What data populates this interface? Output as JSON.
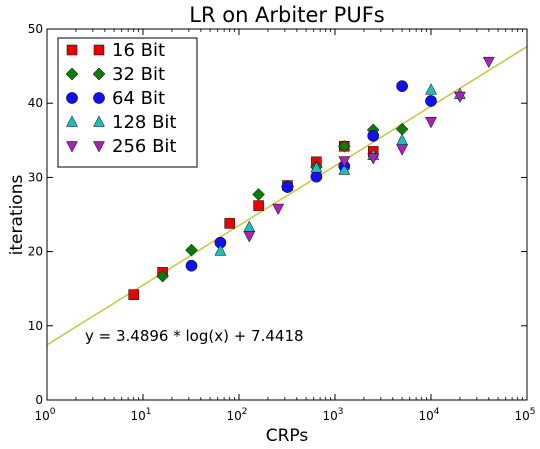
{
  "chart_data": {
    "type": "scatter",
    "title": "LR on Arbiter PUFs",
    "xlabel": "CRPs",
    "ylabel": "iterations",
    "xscale": "log",
    "xlim": [
      1,
      100000
    ],
    "ylim": [
      0,
      50
    ],
    "xticks": [
      {
        "value": 1,
        "base": "10",
        "exp": "0"
      },
      {
        "value": 10,
        "base": "10",
        "exp": "1"
      },
      {
        "value": 100,
        "base": "10",
        "exp": "2"
      },
      {
        "value": 1000,
        "base": "10",
        "exp": "3"
      },
      {
        "value": 10000,
        "base": "10",
        "exp": "4"
      },
      {
        "value": 100000,
        "base": "10",
        "exp": "5"
      }
    ],
    "yticks": [
      "0",
      "10",
      "20",
      "30",
      "40",
      "50"
    ],
    "grid": false,
    "legend_position": "top-left",
    "fit_line": {
      "label": "y = 3.4896 * log(x) + 7.4418",
      "slope": 3.4896,
      "intercept": 7.4418,
      "color": "#c8c84a"
    },
    "series": [
      {
        "name": "16 Bit",
        "marker": "square",
        "color": "#ee0000",
        "points": [
          [
            8,
            14.2
          ],
          [
            16,
            17.2
          ],
          [
            80,
            23.8
          ],
          [
            160,
            26.2
          ],
          [
            320,
            28.9
          ],
          [
            640,
            32.1
          ],
          [
            1250,
            34.2
          ],
          [
            2500,
            33.5
          ]
        ]
      },
      {
        "name": "32 Bit",
        "marker": "diamond",
        "color": "#0b7a0b",
        "points": [
          [
            16,
            16.7
          ],
          [
            32,
            20.2
          ],
          [
            160,
            27.7
          ],
          [
            320,
            28.8
          ],
          [
            640,
            31.4
          ],
          [
            1250,
            34.2
          ],
          [
            2500,
            36.4
          ],
          [
            5000,
            36.5
          ]
        ]
      },
      {
        "name": "64 Bit",
        "marker": "circle",
        "color": "#1111ee",
        "points": [
          [
            32,
            18.1
          ],
          [
            64,
            21.2
          ],
          [
            320,
            28.7
          ],
          [
            640,
            30.1
          ],
          [
            1250,
            31.5
          ],
          [
            2500,
            35.6
          ],
          [
            5000,
            42.3
          ],
          [
            10000,
            40.3
          ]
        ]
      },
      {
        "name": "128 Bit",
        "marker": "triangle-up",
        "color": "#22bbbb",
        "points": [
          [
            64,
            20.1
          ],
          [
            128,
            23.3
          ],
          [
            640,
            31.3
          ],
          [
            1250,
            31.0
          ],
          [
            2500,
            33.0
          ],
          [
            5000,
            35.0
          ],
          [
            10000,
            41.8
          ],
          [
            20000,
            41.2
          ]
        ]
      },
      {
        "name": "256 Bit",
        "marker": "triangle-down",
        "color": "#aa22bb",
        "points": [
          [
            128,
            22.1
          ],
          [
            256,
            25.8
          ],
          [
            1250,
            32.2
          ],
          [
            2500,
            32.6
          ],
          [
            5000,
            33.8
          ],
          [
            10000,
            37.5
          ],
          [
            20000,
            40.9
          ],
          [
            40000,
            45.6
          ]
        ]
      }
    ]
  }
}
